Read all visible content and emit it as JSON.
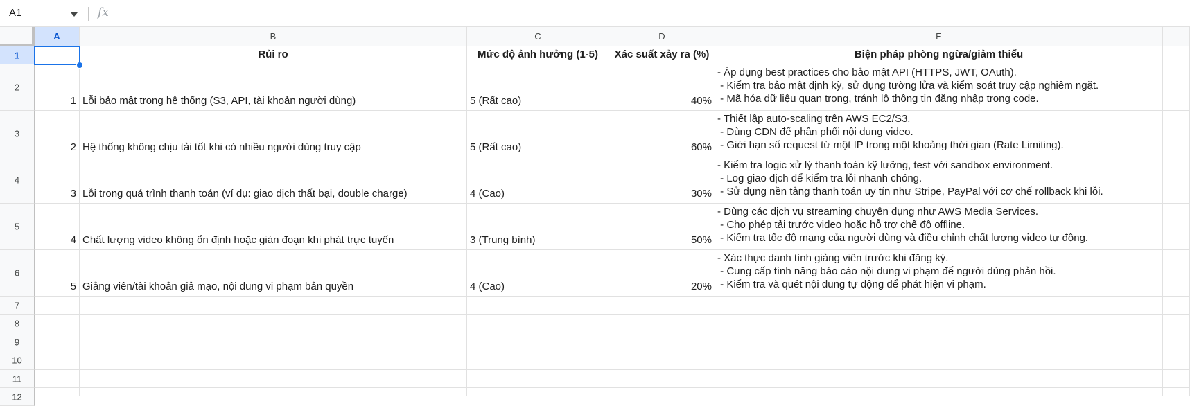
{
  "formula_bar": {
    "name_box": "A1",
    "fx_label": "fx",
    "formula": ""
  },
  "columns": [
    "A",
    "B",
    "C",
    "D",
    "E"
  ],
  "row_numbers": [
    "1",
    "2",
    "3",
    "4",
    "5",
    "6",
    "7",
    "8",
    "9",
    "10",
    "11",
    "12"
  ],
  "header": {
    "a": "",
    "b": "Rủi ro",
    "c": "Mức độ ảnh hưởng (1-5)",
    "d": "Xác suất xảy ra (%)",
    "e": "Biện pháp phòng ngừa/giảm thiểu"
  },
  "rows": [
    {
      "no": "1",
      "risk": "Lỗi bảo mật trong hệ thống (S3, API, tài khoản người dùng)",
      "impact": "5 (Rất cao)",
      "probability": "40%",
      "mitigation": "- Áp dụng best practices cho bảo mật API (HTTPS, JWT, OAuth).\n - Kiểm tra bảo mật định kỳ, sử dụng tường lửa và kiểm soát truy cập nghiêm ngặt.\n - Mã hóa dữ liệu quan trọng, tránh lộ thông tin đăng nhập trong code."
    },
    {
      "no": "2",
      "risk": "Hệ thống không chịu tải tốt khi có nhiều người dùng truy cập",
      "impact": "5 (Rất cao)",
      "probability": "60%",
      "mitigation": "- Thiết lập auto-scaling trên AWS EC2/S3.\n - Dùng CDN để phân phối nội dung video.\n - Giới hạn số request từ một IP trong một khoảng thời gian (Rate Limiting)."
    },
    {
      "no": "3",
      "risk": "Lỗi trong quá trình thanh toán (ví dụ: giao dịch thất bại, double charge)",
      "impact": "4 (Cao)",
      "probability": "30%",
      "mitigation": "- Kiểm tra logic xử lý thanh toán kỹ lưỡng, test với sandbox environment.\n - Log giao dịch để kiểm tra lỗi nhanh chóng.\n - Sử dụng nền tảng thanh toán uy tín như Stripe, PayPal với cơ chế rollback khi lỗi."
    },
    {
      "no": "4",
      "risk": "Chất lượng video không ổn định hoặc gián đoạn khi phát trực tuyến",
      "impact": "3 (Trung bình)",
      "probability": "50%",
      "mitigation": "- Dùng các dịch vụ streaming chuyên dụng như AWS Media Services.\n - Cho phép tải trước video hoặc hỗ trợ chế độ offline.\n - Kiểm tra tốc độ mạng của người dùng và điều chỉnh chất lượng video tự động."
    },
    {
      "no": "5",
      "risk": "Giảng viên/tài khoản giả mạo, nội dung vi phạm bản quyền",
      "impact": "4 (Cao)",
      "probability": "20%",
      "mitigation": "- Xác thực danh tính giảng viên trước khi đăng ký.\n - Cung cấp tính năng báo cáo nội dung vi phạm để người dùng phản hồi.\n - Kiểm tra và quét nội dung tự động để phát hiện vi phạm."
    }
  ]
}
